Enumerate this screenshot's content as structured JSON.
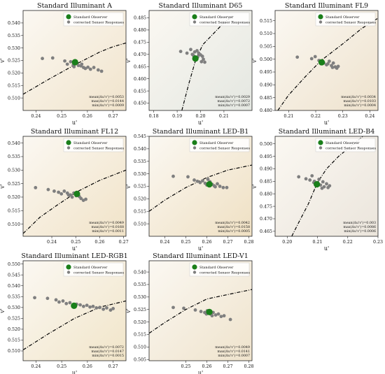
{
  "figure": {
    "legend": {
      "observer_label": "Standard Observer",
      "sensor_label": "corrected Sensor Responses"
    },
    "colors": {
      "observer": "#1a7f1a",
      "sensor": "#7f7f7f",
      "locus": "#000000"
    }
  },
  "chart_data": [
    {
      "type": "scatter",
      "title": "Standard Illuminant A",
      "xlabel": "u'",
      "ylabel": "v'",
      "xlim": [
        0.235,
        0.275
      ],
      "ylim": [
        0.505,
        0.545
      ],
      "xticks": [
        0.24,
        0.25,
        0.26,
        0.27
      ],
      "xtick_labels": [
        "0.24",
        "0.25",
        "0.26",
        "0.27"
      ],
      "yticks": [
        0.51,
        0.515,
        0.52,
        0.525,
        0.53,
        0.535,
        0.54
      ],
      "ytick_labels": [
        "0.510",
        "0.515",
        "0.520",
        "0.525",
        "0.530",
        "0.535",
        "0.540"
      ],
      "background": "#f1e4cc",
      "observer": {
        "x": 0.2552,
        "y": 0.5243
      },
      "sensor": {
        "x": [
          0.2425,
          0.2465,
          0.2512,
          0.2522,
          0.2535,
          0.2545,
          0.2557,
          0.2565,
          0.2575,
          0.2585,
          0.2592,
          0.2602,
          0.2612,
          0.2625,
          0.2642,
          0.2655,
          0.2548,
          0.2578
        ],
        "y": [
          0.5258,
          0.526,
          0.5248,
          0.5235,
          0.5245,
          0.5232,
          0.524,
          0.523,
          0.5228,
          0.5222,
          0.5218,
          0.5223,
          0.5215,
          0.5222,
          0.5212,
          0.5207,
          0.5225,
          0.5235
        ]
      },
      "locus": {
        "x": [
          0.235,
          0.245,
          0.255,
          0.265,
          0.27,
          0.275
        ],
        "y": [
          0.5115,
          0.5175,
          0.5232,
          0.5285,
          0.5305,
          0.532
        ]
      },
      "stats": [
        "mean(Δu'v')=0.0053",
        "max(Δu'v')=0.0144",
        "min(Δu'v')=0.0009"
      ]
    },
    {
      "type": "scatter",
      "title": "Standard Illuminant D65",
      "xlabel": "u'",
      "ylabel": "v'",
      "xlim": [
        0.178,
        0.222
      ],
      "ylim": [
        0.447,
        0.488
      ],
      "xticks": [
        0.18,
        0.19,
        0.2,
        0.21
      ],
      "xtick_labels": [
        "0.18",
        "0.19",
        "0.20",
        "0.21"
      ],
      "yticks": [
        0.45,
        0.455,
        0.46,
        0.465,
        0.47,
        0.475,
        0.48,
        0.485
      ],
      "ytick_labels": [
        "0.450",
        "0.455",
        "0.460",
        "0.465",
        "0.470",
        "0.475",
        "0.480",
        "0.485"
      ],
      "background": "#e4e7e1",
      "observer": {
        "x": 0.1978,
        "y": 0.4683
      },
      "sensor": {
        "x": [
          0.1915,
          0.1942,
          0.1958,
          0.1965,
          0.1975,
          0.1985,
          0.1992,
          0.2,
          0.2008,
          0.2012,
          0.2018,
          0.1988,
          0.1996,
          0.2004,
          0.197
        ],
        "y": [
          0.4712,
          0.4705,
          0.472,
          0.47,
          0.471,
          0.4715,
          0.4705,
          0.4698,
          0.4692,
          0.468,
          0.4668,
          0.469,
          0.47,
          0.467,
          0.4695
        ]
      },
      "locus": {
        "x": [
          0.192,
          0.195,
          0.198,
          0.201,
          0.205,
          0.21,
          0.214
        ],
        "y": [
          0.447,
          0.458,
          0.468,
          0.474,
          0.478,
          0.483,
          0.486
        ]
      },
      "stats": [
        "mean(Δu'v')=0.0029",
        "max(Δu'v')=0.0072",
        "min(Δu'v')=0.0007"
      ]
    },
    {
      "type": "scatter",
      "title": "Standard Illuminant FL9",
      "xlabel": "u'",
      "ylabel": "v'",
      "xlim": [
        0.205,
        0.243
      ],
      "ylim": [
        0.48,
        0.519
      ],
      "xticks": [
        0.21,
        0.22,
        0.23,
        0.24
      ],
      "xtick_labels": [
        "0.21",
        "0.22",
        "0.23",
        "0.24"
      ],
      "yticks": [
        0.48,
        0.485,
        0.49,
        0.495,
        0.5,
        0.505,
        0.51,
        0.515
      ],
      "ytick_labels": [
        "0.480",
        "0.485",
        "0.490",
        "0.495",
        "0.500",
        "0.505",
        "0.510",
        "0.515"
      ],
      "background": "#eee2cd",
      "observer": {
        "x": 0.2222,
        "y": 0.4988
      },
      "sensor": {
        "x": [
          0.2132,
          0.2185,
          0.2198,
          0.2212,
          0.2222,
          0.223,
          0.224,
          0.225,
          0.2258,
          0.2265,
          0.2272,
          0.2278,
          0.2283,
          0.2262,
          0.2245
        ],
        "y": [
          0.5008,
          0.5002,
          0.501,
          0.4995,
          0.499,
          0.4985,
          0.4978,
          0.4992,
          0.4975,
          0.4985,
          0.497,
          0.4965,
          0.4972,
          0.4968,
          0.4982
        ]
      },
      "locus": {
        "x": [
          0.206,
          0.21,
          0.216,
          0.222,
          0.23,
          0.237,
          0.243
        ],
        "y": [
          0.48,
          0.486,
          0.493,
          0.4995,
          0.506,
          0.512,
          0.516
        ]
      },
      "stats": [
        "mean(Δu'v')=0.0034",
        "max(Δu'v')=0.0103",
        "min(Δu'v')=0.0004"
      ]
    },
    {
      "type": "scatter",
      "title": "Standard Illuminant FL12",
      "xlabel": "u'",
      "ylabel": "v'",
      "xlim": [
        0.228,
        0.271
      ],
      "ylim": [
        0.5055,
        0.5425
      ],
      "xticks": [
        0.24,
        0.25,
        0.26,
        0.27
      ],
      "xtick_labels": [
        "0.24",
        "0.25",
        "0.26",
        "0.27"
      ],
      "yticks": [
        0.51,
        0.515,
        0.52,
        0.525,
        0.53,
        0.535,
        0.54
      ],
      "ytick_labels": [
        "0.510",
        "0.515",
        "0.520",
        "0.525",
        "0.530",
        "0.535",
        "0.540"
      ],
      "background": "#f1e3c8",
      "observer": {
        "x": 0.2505,
        "y": 0.5212
      },
      "sensor": {
        "x": [
          0.2332,
          0.2385,
          0.241,
          0.2428,
          0.244,
          0.2452,
          0.2465,
          0.2478,
          0.2492,
          0.2502,
          0.2515,
          0.2522,
          0.2532,
          0.2542,
          0.2485,
          0.247
        ],
        "y": [
          0.5235,
          0.5228,
          0.5222,
          0.5218,
          0.5212,
          0.5222,
          0.5215,
          0.5208,
          0.5215,
          0.5205,
          0.5202,
          0.5195,
          0.5188,
          0.5192,
          0.52,
          0.5208
        ]
      },
      "locus": {
        "x": [
          0.228,
          0.235,
          0.243,
          0.251,
          0.26,
          0.271
        ],
        "y": [
          0.5065,
          0.5125,
          0.5175,
          0.5222,
          0.5262,
          0.53
        ]
      },
      "stats": [
        "mean(Δu'v')=0.0049",
        "max(Δu'v')=0.0168",
        "min(Δu'v')=0.0011"
      ]
    },
    {
      "type": "scatter",
      "title": "Standard Illuminant LED-B1",
      "xlabel": "u'",
      "ylabel": "v'",
      "xlim": [
        0.2325,
        0.2815
      ],
      "ylim": [
        0.505,
        0.545
      ],
      "xticks": [
        0.24,
        0.25,
        0.26,
        0.27,
        0.28
      ],
      "xtick_labels": [
        "0.24",
        "0.25",
        "0.26",
        "0.27",
        "0.28"
      ],
      "yticks": [
        0.51,
        0.515,
        0.52,
        0.525,
        0.53,
        0.535,
        0.54,
        0.545
      ],
      "ytick_labels": [
        "0.510",
        "0.515",
        "0.520",
        "0.525",
        "0.530",
        "0.535",
        "0.540",
        "0.545"
      ],
      "background": "#efe0c3",
      "observer": {
        "x": 0.2612,
        "y": 0.5258
      },
      "sensor": {
        "x": [
          0.244,
          0.251,
          0.254,
          0.2555,
          0.2568,
          0.258,
          0.2592,
          0.26,
          0.2615,
          0.2625,
          0.2635,
          0.265,
          0.2662,
          0.2678,
          0.2695,
          0.2605,
          0.264
        ],
        "y": [
          0.529,
          0.5288,
          0.5275,
          0.527,
          0.5265,
          0.5272,
          0.5262,
          0.5255,
          0.5268,
          0.5258,
          0.5252,
          0.526,
          0.525,
          0.5245,
          0.5245,
          0.5278,
          0.5248
        ]
      },
      "locus": {
        "x": [
          0.2325,
          0.24,
          0.25,
          0.26,
          0.27,
          0.2815
        ],
        "y": [
          0.515,
          0.5195,
          0.5245,
          0.5285,
          0.5315,
          0.5335
        ]
      },
      "stats": [
        "mean(Δu'v')=0.0042",
        "max(Δu'v')=0.0158",
        "min(Δu'v')=0.0005"
      ]
    },
    {
      "type": "scatter",
      "title": "Standard Illuminant LED-B4",
      "xlabel": "u'",
      "ylabel": "v'",
      "xlim": [
        0.196,
        0.23
      ],
      "ylim": [
        0.463,
        0.503
      ],
      "xticks": [
        0.2,
        0.21,
        0.22,
        0.23
      ],
      "xtick_labels": [
        "0.20",
        "0.21",
        "0.22",
        "0.23"
      ],
      "yticks": [
        0.465,
        0.47,
        0.475,
        0.48,
        0.485,
        0.49,
        0.495,
        0.5
      ],
      "ytick_labels": [
        "0.465",
        "0.470",
        "0.475",
        "0.480",
        "0.485",
        "0.490",
        "0.495",
        "0.500"
      ],
      "background": "#ebe5dc",
      "observer": {
        "x": 0.2098,
        "y": 0.4838
      },
      "sensor": {
        "x": [
          0.2038,
          0.2062,
          0.2075,
          0.2082,
          0.209,
          0.2098,
          0.2105,
          0.211,
          0.2118,
          0.2122,
          0.213,
          0.2135,
          0.214,
          0.2115,
          0.2088
        ],
        "y": [
          0.4868,
          0.486,
          0.4855,
          0.4872,
          0.485,
          0.4842,
          0.4858,
          0.4835,
          0.4848,
          0.4828,
          0.484,
          0.4825,
          0.4832,
          0.4822,
          0.4845
        ]
      },
      "locus": {
        "x": [
          0.2015,
          0.204,
          0.207,
          0.21,
          0.213,
          0.217,
          0.221,
          0.225
        ],
        "y": [
          0.463,
          0.469,
          0.476,
          0.4845,
          0.49,
          0.495,
          0.499,
          0.503
        ]
      },
      "stats": [
        "mean(Δu'v')=0.003",
        "max(Δu'v')=0.0086",
        "min(Δu'v')=0.0006"
      ]
    },
    {
      "type": "scatter",
      "title": "Standard Illuminant LED-RGB1",
      "xlabel": "u'",
      "ylabel": "v'",
      "xlim": [
        0.235,
        0.275
      ],
      "ylim": [
        0.5055,
        0.5515
      ],
      "xticks": [
        0.24,
        0.25,
        0.26,
        0.27
      ],
      "xtick_labels": [
        "0.24",
        "0.25",
        "0.26",
        "0.27"
      ],
      "yticks": [
        0.51,
        0.515,
        0.52,
        0.525,
        0.53,
        0.535,
        0.54,
        0.545,
        0.55
      ],
      "ytick_labels": [
        "0.510",
        "0.515",
        "0.520",
        "0.525",
        "0.530",
        "0.535",
        "0.540",
        "0.545",
        "0.550"
      ],
      "background": "#f1e5c9",
      "observer": {
        "x": 0.2548,
        "y": 0.5308
      },
      "sensor": {
        "x": [
          0.2395,
          0.2445,
          0.2478,
          0.249,
          0.2505,
          0.2518,
          0.2532,
          0.2558,
          0.2572,
          0.2585,
          0.2598,
          0.261,
          0.2622,
          0.2635,
          0.2648,
          0.2662,
          0.2675,
          0.269,
          0.27
        ],
        "y": [
          0.5345,
          0.5342,
          0.5335,
          0.5325,
          0.533,
          0.5318,
          0.5322,
          0.5315,
          0.5312,
          0.5305,
          0.531,
          0.5302,
          0.5305,
          0.5298,
          0.53,
          0.5292,
          0.5298,
          0.5288,
          0.5295
        ]
      },
      "locus": {
        "x": [
          0.235,
          0.245,
          0.255,
          0.265,
          0.275
        ],
        "y": [
          0.5105,
          0.518,
          0.525,
          0.5302,
          0.533
        ]
      },
      "stats": [
        "mean(Δu'v')=0.0072",
        "max(Δu'v')=0.0147",
        "min(Δu'v')=0.0015"
      ]
    },
    {
      "type": "scatter",
      "title": "Standard Illuminant LED-V1",
      "xlabel": "u'",
      "ylabel": "v'",
      "xlim": [
        0.2325,
        0.2815
      ],
      "ylim": [
        0.5045,
        0.5445
      ],
      "xticks": [
        0.25,
        0.26,
        0.27,
        0.28
      ],
      "xtick_labels": [
        "0.25",
        "0.26",
        "0.27",
        "0.28"
      ],
      "yticks": [
        0.505,
        0.51,
        0.515,
        0.52,
        0.525,
        0.53,
        0.535,
        0.54
      ],
      "ytick_labels": [
        "0.505",
        "0.510",
        "0.515",
        "0.520",
        "0.525",
        "0.530",
        "0.535",
        "0.540"
      ],
      "background": "#efe3cc",
      "observer": {
        "x": 0.2612,
        "y": 0.524
      },
      "sensor": {
        "x": [
          0.244,
          0.249,
          0.2545,
          0.2572,
          0.259,
          0.2602,
          0.2618,
          0.263,
          0.2642,
          0.2655,
          0.2668,
          0.2682,
          0.2712,
          0.2598,
          0.2625
        ],
        "y": [
          0.5258,
          0.5255,
          0.5248,
          0.5242,
          0.5238,
          0.5245,
          0.5232,
          0.5238,
          0.5228,
          0.5232,
          0.5222,
          0.5225,
          0.521,
          0.5232,
          0.5225
        ]
      },
      "locus": {
        "x": [
          0.2325,
          0.24,
          0.25,
          0.26,
          0.27,
          0.2815
        ],
        "y": [
          0.5155,
          0.5198,
          0.525,
          0.5292,
          0.531,
          0.533
        ]
      },
      "stats": [
        "mean(Δu'v')=0.0049",
        "max(Δu'v')=0.0141",
        "min(Δu'v')=0.0007"
      ]
    }
  ]
}
